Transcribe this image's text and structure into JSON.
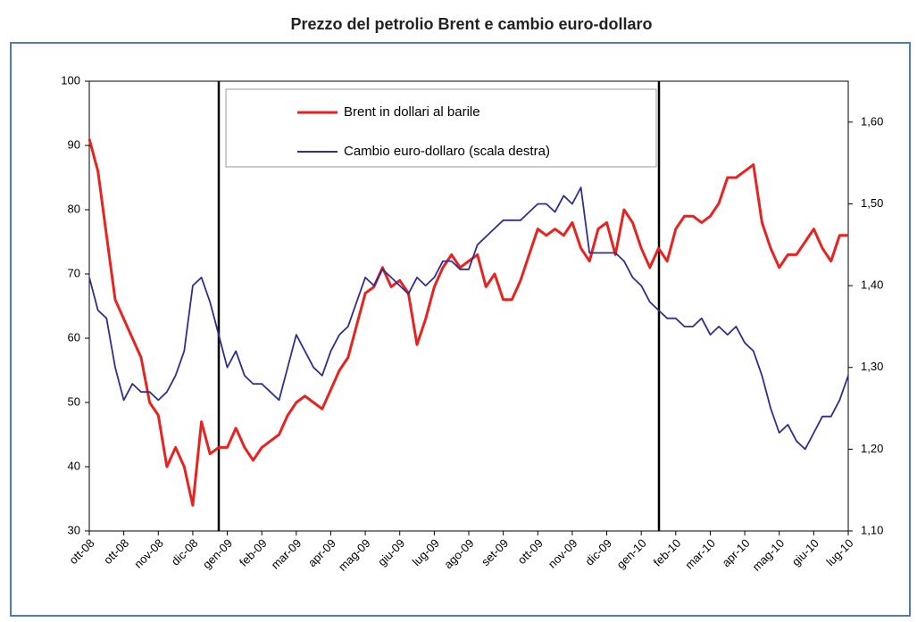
{
  "chart_data": {
    "type": "line",
    "title": "Prezzo del petrolio Brent e cambio euro-dollaro",
    "categories": [
      "ott-08",
      null,
      null,
      null,
      "ott-08",
      null,
      null,
      null,
      "nov-08",
      null,
      null,
      null,
      "dic-08",
      null,
      null,
      null,
      "gen-09",
      null,
      null,
      null,
      "feb-09",
      null,
      null,
      null,
      "mar-09",
      null,
      null,
      null,
      "apr-09",
      null,
      null,
      null,
      "mag-09",
      null,
      null,
      null,
      "giu-09",
      null,
      null,
      null,
      "lug-09",
      null,
      null,
      null,
      "ago-09",
      null,
      null,
      null,
      "set-09",
      null,
      null,
      null,
      "ott-09",
      null,
      null,
      null,
      "nov-09",
      null,
      null,
      null,
      "dic-09",
      null,
      null,
      null,
      "gen-10",
      null,
      null,
      null,
      "feb-10",
      null,
      null,
      null,
      "mar-10",
      null,
      null,
      null,
      "apr-10",
      null,
      null,
      null,
      "mag-10",
      null,
      null,
      null,
      "giu-10",
      null,
      null,
      null,
      "lug-10"
    ],
    "series": [
      {
        "name": "Brent in dollari al barile",
        "color": "#e8231f",
        "axis": "y",
        "values": [
          91,
          86,
          76,
          66,
          63,
          60,
          57,
          50,
          48,
          40,
          43,
          40,
          34,
          47,
          42,
          43,
          43,
          46,
          43,
          41,
          43,
          44,
          45,
          48,
          50,
          51,
          50,
          49,
          52,
          55,
          57,
          62,
          67,
          68,
          71,
          68,
          69,
          67,
          59,
          63,
          68,
          71,
          73,
          71,
          72,
          73,
          68,
          70,
          66,
          66,
          69,
          73,
          77,
          76,
          77,
          76,
          78,
          74,
          72,
          77,
          78,
          73,
          80,
          78,
          74,
          71,
          74,
          72,
          77,
          79,
          79,
          78,
          79,
          81,
          85,
          85,
          86,
          87,
          78,
          74,
          71,
          73,
          73,
          75,
          77,
          74,
          72,
          76,
          76
        ]
      },
      {
        "name": "Cambio euro-dollaro (scala destra)",
        "color": "#2e2f8f",
        "axis": "y2",
        "values": [
          1.41,
          1.37,
          1.36,
          1.3,
          1.26,
          1.28,
          1.27,
          1.27,
          1.26,
          1.27,
          1.29,
          1.32,
          1.4,
          1.41,
          1.38,
          1.34,
          1.3,
          1.32,
          1.29,
          1.28,
          1.28,
          1.27,
          1.26,
          1.3,
          1.34,
          1.32,
          1.3,
          1.29,
          1.32,
          1.34,
          1.35,
          1.38,
          1.41,
          1.4,
          1.42,
          1.41,
          1.4,
          1.39,
          1.41,
          1.4,
          1.41,
          1.43,
          1.43,
          1.42,
          1.42,
          1.45,
          1.46,
          1.47,
          1.48,
          1.48,
          1.48,
          1.49,
          1.5,
          1.5,
          1.49,
          1.51,
          1.5,
          1.52,
          1.44,
          1.44,
          1.44,
          1.44,
          1.43,
          1.41,
          1.4,
          1.38,
          1.37,
          1.36,
          1.36,
          1.35,
          1.35,
          1.36,
          1.34,
          1.35,
          1.34,
          1.35,
          1.33,
          1.32,
          1.29,
          1.25,
          1.22,
          1.23,
          1.21,
          1.2,
          1.22,
          1.24,
          1.24,
          1.26,
          1.29
        ]
      }
    ],
    "ylim": [
      30,
      100
    ],
    "yticks": [
      30,
      40,
      50,
      60,
      70,
      80,
      90,
      100
    ],
    "y2lim": [
      1.1,
      1.65
    ],
    "y2ticks": [
      {
        "value": 1.1,
        "label": "1,10"
      },
      {
        "value": 1.2,
        "label": "1,20"
      },
      {
        "value": 1.3,
        "label": "1,30"
      },
      {
        "value": 1.4,
        "label": "1,40"
      },
      {
        "value": 1.5,
        "label": "1,50"
      },
      {
        "value": 1.6,
        "label": "1,60"
      }
    ],
    "legend": "upper center",
    "grid": false
  }
}
